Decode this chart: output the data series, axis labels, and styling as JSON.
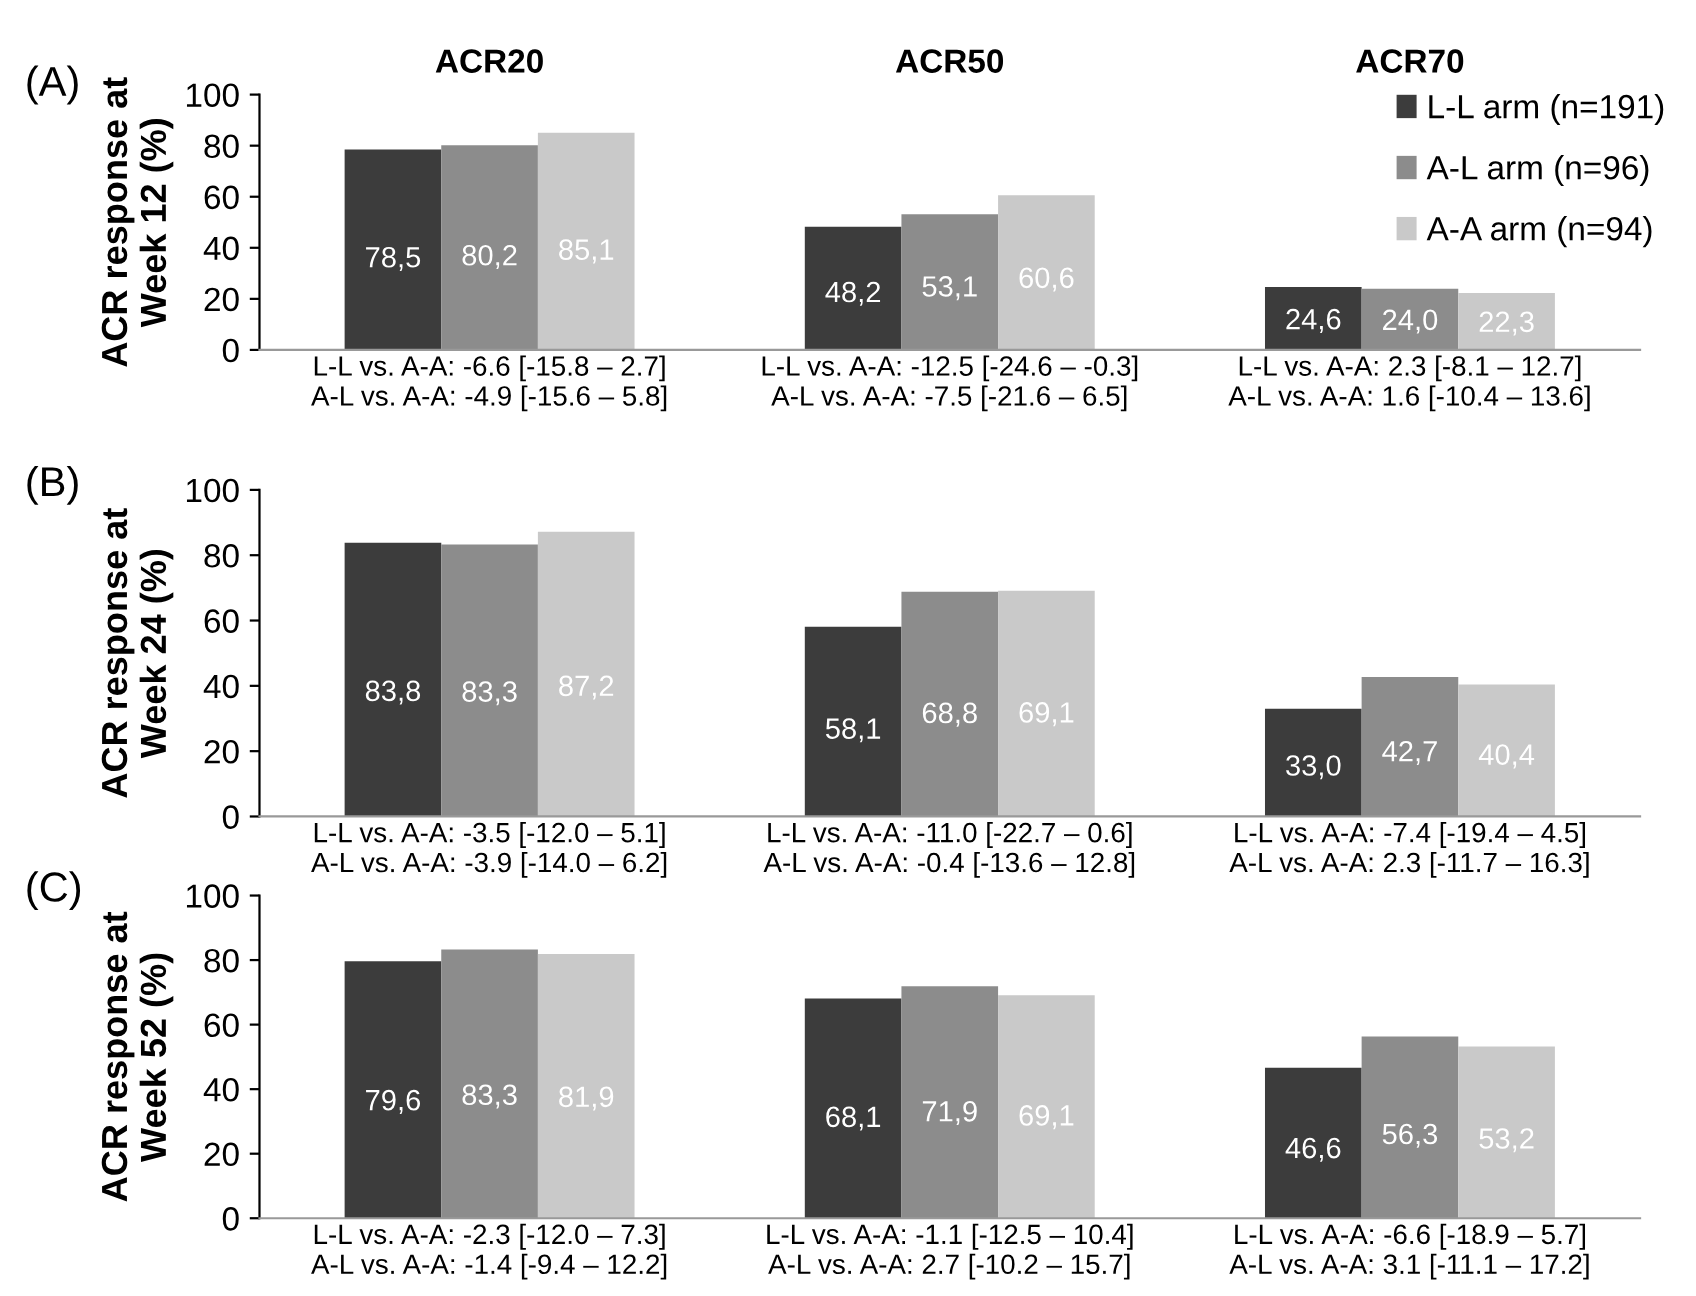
{
  "chart_data": [
    {
      "type": "bar",
      "title": "(A)",
      "ylabel": "ACR response at\nWeek 12 (%)",
      "annotations": [
        "ACR20",
        "ACR50",
        "ACR70"
      ],
      "categories": [
        "L-L vs. A-A: -6.6 [-15.8 – 2.7]\nA-L vs. A-A: -4.9 [-15.6 – 5.8]",
        "L-L vs. A-A: -12.5 [-24.6 – -0.3]\nA-L vs. A-A: -7.5 [-21.6 – 6.5]",
        "L-L vs. A-A: 2.3 [-8.1 – 12.7]\nA-L vs. A-A: 1.6 [-10.4 – 13.6]"
      ],
      "series": [
        {
          "name": "L-L arm (n=191)",
          "color": "#3c3c3c",
          "values": [
            78.5,
            48.2,
            24.6
          ],
          "value_labels": [
            "78,5",
            "48,2",
            "24,6"
          ]
        },
        {
          "name": "A-L arm (n=96)",
          "color": "#8c8c8c",
          "values": [
            80.2,
            53.1,
            24.0
          ],
          "value_labels": [
            "80,2",
            "53,1",
            "24,0"
          ]
        },
        {
          "name": "A-A arm (n=94)",
          "color": "#c9c9c9",
          "values": [
            85.1,
            60.6,
            22.3
          ],
          "value_labels": [
            "85,1",
            "60,6",
            "22,3"
          ]
        }
      ],
      "ylim": [
        0,
        100
      ],
      "yticks": [
        0,
        20,
        40,
        60,
        80,
        100
      ],
      "grid": false,
      "legend": "top right"
    },
    {
      "type": "bar",
      "title": "(B)",
      "ylabel": "ACR response at\nWeek 24 (%)",
      "categories": [
        "L-L vs. A-A: -3.5 [-12.0 – 5.1]\nA-L vs. A-A: -3.9 [-14.0 – 6.2]",
        "L-L vs. A-A: -11.0 [-22.7 – 0.6]\nA-L vs. A-A: -0.4 [-13.6 – 12.8]",
        "L-L vs. A-A: -7.4 [-19.4 – 4.5]\nA-L vs. A-A: 2.3 [-11.7 – 16.3]"
      ],
      "series": [
        {
          "color": "#3c3c3c",
          "values": [
            83.8,
            58.1,
            33.0
          ],
          "value_labels": [
            "83,8",
            "58,1",
            "33,0"
          ]
        },
        {
          "color": "#8c8c8c",
          "values": [
            83.3,
            68.8,
            42.7
          ],
          "value_labels": [
            "83,3",
            "68,8",
            "42,7"
          ]
        },
        {
          "color": "#c9c9c9",
          "values": [
            87.2,
            69.1,
            40.4
          ],
          "value_labels": [
            "87,2",
            "69,1",
            "40,4"
          ]
        }
      ],
      "ylim": [
        0,
        100
      ],
      "yticks": [
        0,
        20,
        40,
        60,
        80,
        100
      ],
      "grid": false
    },
    {
      "type": "bar",
      "title": "(C)",
      "ylabel": "ACR response at\nWeek 52 (%)",
      "categories": [
        "L-L vs. A-A: -2.3 [-12.0 – 7.3]\nA-L vs. A-A: -1.4 [-9.4 – 12.2]",
        "L-L vs. A-A: -1.1 [-12.5 – 10.4]\nA-L vs. A-A: 2.7 [-10.2 – 15.7]",
        "L-L vs. A-A: -6.6 [-18.9 – 5.7]\nA-L vs. A-A: 3.1 [-11.1 – 17.2]"
      ],
      "series": [
        {
          "color": "#3c3c3c",
          "values": [
            79.6,
            68.1,
            46.6
          ],
          "value_labels": [
            "79,6",
            "68,1",
            "46,6"
          ]
        },
        {
          "color": "#8c8c8c",
          "values": [
            83.3,
            71.9,
            56.3
          ],
          "value_labels": [
            "83,3",
            "71,9",
            "56,3"
          ]
        },
        {
          "color": "#c9c9c9",
          "values": [
            81.9,
            69.1,
            53.2
          ],
          "value_labels": [
            "81,9",
            "69,1",
            "53,2"
          ]
        }
      ],
      "ylim": [
        0,
        100
      ],
      "yticks": [
        0,
        20,
        40,
        60,
        80,
        100
      ],
      "grid": false
    }
  ]
}
